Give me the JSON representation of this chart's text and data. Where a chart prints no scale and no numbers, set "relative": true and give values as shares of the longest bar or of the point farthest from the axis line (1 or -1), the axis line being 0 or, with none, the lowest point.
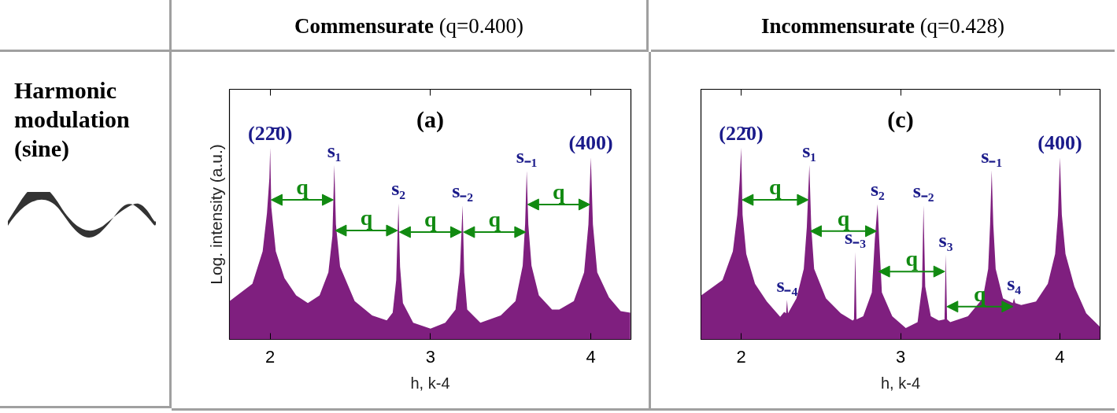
{
  "chart_data": [
    {
      "type": "other",
      "title": "Harmonic modulation (sine)"
    },
    {
      "type": "area",
      "title": "Commensurate",
      "subtitle": "(q=0.400)",
      "xlabel": "h, k-4",
      "ylabel": "Log. intensity (a.u.)",
      "relative": true,
      "tick_labels": "x",
      "xlim": [
        1.746,
        4.25
      ],
      "xticks": [
        2,
        3,
        4
      ],
      "x": [
        1.747,
        1.889,
        1.953,
        1.98,
        1.995,
        2.0,
        2.007,
        2.035,
        2.089,
        2.162,
        2.235,
        2.308,
        2.363,
        2.388,
        2.4,
        2.41,
        2.436,
        2.527,
        2.636,
        2.727,
        2.764,
        2.786,
        2.8,
        2.81,
        2.828,
        2.892,
        3.0,
        3.092,
        3.156,
        3.183,
        3.2,
        3.21,
        3.229,
        3.311,
        3.438,
        3.53,
        3.575,
        3.59,
        3.6,
        3.61,
        3.63,
        3.676,
        3.758,
        3.803,
        3.894,
        3.958,
        3.985,
        4.0,
        4.013,
        4.04,
        4.113,
        4.186,
        4.246
      ],
      "series": [
        {
          "color": "#7f1f7f",
          "values": [
            0.2,
            0.29,
            0.46,
            0.66,
            0.84,
            1.0,
            0.69,
            0.46,
            0.32,
            0.23,
            0.19,
            0.23,
            0.35,
            0.54,
            0.91,
            0.6,
            0.38,
            0.2,
            0.125,
            0.1,
            0.14,
            0.31,
            0.71,
            0.38,
            0.19,
            0.087,
            0.056,
            0.087,
            0.156,
            0.35,
            0.7,
            0.35,
            0.156,
            0.087,
            0.125,
            0.2,
            0.385,
            0.6,
            0.88,
            0.6,
            0.385,
            0.23,
            0.156,
            0.156,
            0.2,
            0.35,
            0.6,
            0.95,
            0.6,
            0.35,
            0.22,
            0.148,
            0.14
          ]
        }
      ],
      "annotations": [
        "(a)",
        {
          "text": "(22̄0)",
          "x": 2.0,
          "y": 1.0
        },
        {
          "text": "s₁",
          "x": 2.4,
          "y": 0.91
        },
        {
          "text": "s₂",
          "x": 2.8,
          "y": 0.71
        },
        {
          "text": "s₋₂",
          "x": 3.2,
          "y": 0.7
        },
        {
          "text": "s₋₁",
          "x": 3.6,
          "y": 0.88
        },
        {
          "text": "(400)",
          "x": 4.0,
          "y": 0.95
        },
        "q",
        "q",
        "q",
        "q",
        "q"
      ]
    },
    {
      "type": "area",
      "title": "Incommensurate",
      "subtitle": "(q=0.428)",
      "xlabel": "h, k-4",
      "relative": true,
      "tick_labels": "x",
      "xlim": [
        1.748,
        4.252
      ],
      "xticks": [
        2,
        3,
        4
      ],
      "x": [
        1.748,
        1.883,
        1.948,
        1.976,
        1.991,
        2.0,
        2.009,
        2.032,
        2.087,
        2.161,
        2.245,
        2.27,
        2.282,
        2.288,
        2.294,
        2.347,
        2.393,
        2.412,
        2.428,
        2.44,
        2.458,
        2.532,
        2.625,
        2.7,
        2.708,
        2.716,
        2.724,
        2.766,
        2.82,
        2.839,
        2.856,
        2.866,
        2.883,
        2.948,
        3.033,
        3.107,
        3.135,
        3.144,
        3.155,
        3.19,
        3.24,
        3.276,
        3.284,
        3.292,
        3.312,
        3.423,
        3.516,
        3.55,
        3.562,
        3.572,
        3.582,
        3.597,
        3.643,
        3.704,
        3.712,
        3.72,
        3.757,
        3.85,
        3.924,
        3.97,
        3.988,
        4.0,
        4.012,
        4.035,
        4.091,
        4.165,
        4.25
      ],
      "series": [
        {
          "color": "#7f1f7f",
          "values": [
            0.229,
            0.31,
            0.46,
            0.65,
            0.83,
            1.0,
            0.65,
            0.446,
            0.29,
            0.198,
            0.118,
            0.144,
            0.136,
            0.206,
            0.136,
            0.214,
            0.368,
            0.585,
            0.91,
            0.585,
            0.368,
            0.214,
            0.136,
            0.098,
            0.105,
            0.457,
            0.105,
            0.121,
            0.245,
            0.523,
            0.706,
            0.523,
            0.245,
            0.121,
            0.059,
            0.09,
            0.276,
            0.7,
            0.276,
            0.121,
            0.098,
            0.105,
            0.443,
            0.105,
            0.09,
            0.121,
            0.214,
            0.368,
            0.6,
            0.882,
            0.6,
            0.368,
            0.214,
            0.19,
            0.214,
            0.19,
            0.18,
            0.198,
            0.29,
            0.446,
            0.65,
            0.949,
            0.65,
            0.446,
            0.276,
            0.136,
            0.067
          ]
        }
      ],
      "annotations": [
        "(c)",
        {
          "text": "(22̄0)",
          "x": 2.0,
          "y": 1.0
        },
        {
          "text": "s₁",
          "x": 2.428,
          "y": 0.91
        },
        {
          "text": "s₂",
          "x": 2.856,
          "y": 0.706
        },
        {
          "text": "s₃",
          "x": 3.284,
          "y": 0.443
        },
        {
          "text": "s₄",
          "x": 3.712,
          "y": 0.214
        },
        {
          "text": "s₋₄",
          "x": 2.288,
          "y": 0.206
        },
        {
          "text": "s₋₃",
          "x": 2.716,
          "y": 0.457
        },
        {
          "text": "s₋₂",
          "x": 3.144,
          "y": 0.7
        },
        {
          "text": "s₋₁",
          "x": 3.572,
          "y": 0.882
        },
        {
          "text": "(400)",
          "x": 4.0,
          "y": 0.949
        },
        "q",
        "q",
        "q",
        "q"
      ]
    }
  ]
}
